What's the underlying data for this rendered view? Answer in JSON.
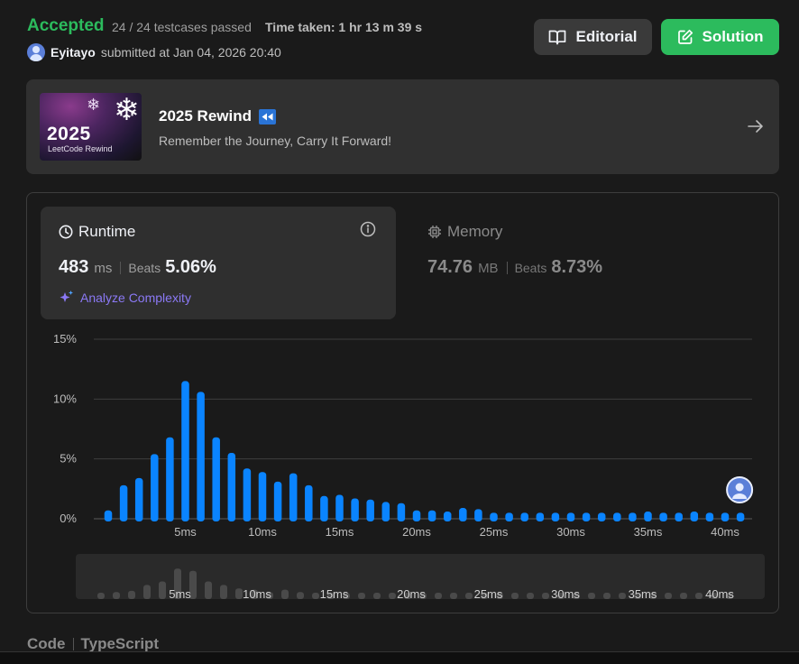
{
  "header": {
    "status": "Accepted",
    "testcases": "24 / 24 testcases passed",
    "time_taken": "Time taken: 1 hr 13 m 39 s",
    "username": "Eyitayo",
    "submitted": "submitted at Jan 04, 2026 20:40",
    "editorial_label": "Editorial",
    "solution_label": "Solution"
  },
  "banner": {
    "image_year": "2025",
    "image_sub": "LeetCode Rewind",
    "title": "2025 Rewind",
    "subtitle": "Remember the Journey, Carry It Forward!"
  },
  "runtime": {
    "title": "Runtime",
    "value": "483",
    "unit": "ms",
    "beats_label": "Beats",
    "beats": "5.06%",
    "analyze_label": "Analyze Complexity"
  },
  "memory": {
    "title": "Memory",
    "value": "74.76",
    "unit": "MB",
    "beats_label": "Beats",
    "beats": "8.73%"
  },
  "code": {
    "label": "Code",
    "language": "TypeScript"
  },
  "colors": {
    "accepted": "#2cbb5d",
    "bar": "#0a84ff",
    "accent_purple": "#8b79f5"
  },
  "chart_data": {
    "type": "bar",
    "ylim": [
      0,
      15
    ],
    "yticks": [
      "15%",
      "10%",
      "5%",
      "0%"
    ],
    "ytick_values": [
      15,
      10,
      5,
      0
    ],
    "xtick_labels": [
      "5ms",
      "10ms",
      "15ms",
      "20ms",
      "25ms",
      "30ms",
      "35ms",
      "40ms"
    ],
    "xtick_bar_index": [
      5,
      10,
      15,
      20,
      25,
      30,
      35,
      40
    ],
    "values": [
      0.7,
      2.8,
      3.4,
      5.4,
      6.8,
      11.5,
      10.6,
      6.8,
      5.5,
      4.2,
      3.9,
      3.1,
      3.8,
      2.8,
      1.9,
      2.0,
      1.7,
      1.6,
      1.4,
      1.3,
      0.7,
      0.7,
      0.6,
      0.9,
      0.8,
      0.5,
      0.5,
      0.5,
      0.5,
      0.5,
      0.5,
      0.5,
      0.5,
      0.5,
      0.5,
      0.6,
      0.5,
      0.5,
      0.6,
      0.5,
      0.5,
      0.5
    ],
    "overview_values": [
      0.5,
      0.6,
      0.7,
      1.2,
      1.5,
      2.6,
      2.4,
      1.5,
      1.2,
      0.9,
      0.8,
      0.6,
      0.8,
      0.6,
      0.5,
      0.5,
      0.5,
      0.5,
      0.5,
      0.5,
      0.5,
      0.5,
      0.5,
      0.5,
      0.5,
      0.5,
      0.5,
      0.5,
      0.5,
      0.5,
      0.5,
      0.5,
      0.5,
      0.5,
      0.5,
      0.5,
      0.5,
      0.5,
      0.5,
      0.5,
      0.5,
      0.5
    ],
    "user_bar_index": 41,
    "grid": true
  }
}
